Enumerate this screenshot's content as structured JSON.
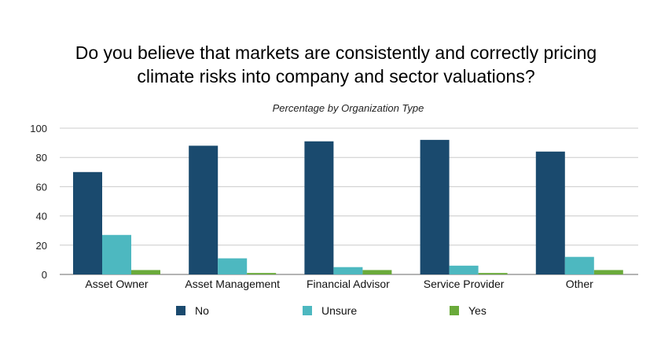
{
  "chart_data": {
    "type": "bar",
    "title_line1": "Do you believe that markets are consistently and correctly pricing",
    "title_line2": "climate risks into company and sector valuations?",
    "subtitle": "Percentage by Organization Type",
    "categories": [
      "Asset Owner",
      "Asset Management",
      "Financial Advisor",
      "Service Provider",
      "Other"
    ],
    "series": [
      {
        "name": "No",
        "color": "#1a4a6e",
        "values": [
          70,
          88,
          91,
          92,
          84
        ]
      },
      {
        "name": "Unsure",
        "color": "#4db8c0",
        "values": [
          27,
          11,
          5,
          6,
          12
        ]
      },
      {
        "name": "Yes",
        "color": "#6aaa3a",
        "values": [
          3,
          1,
          3,
          1,
          3
        ]
      }
    ],
    "ylim": [
      0,
      100
    ],
    "yticks": [
      0,
      20,
      40,
      60,
      80,
      100
    ],
    "xlabel": "",
    "ylabel": "",
    "grid": true,
    "legend_position": "bottom"
  }
}
